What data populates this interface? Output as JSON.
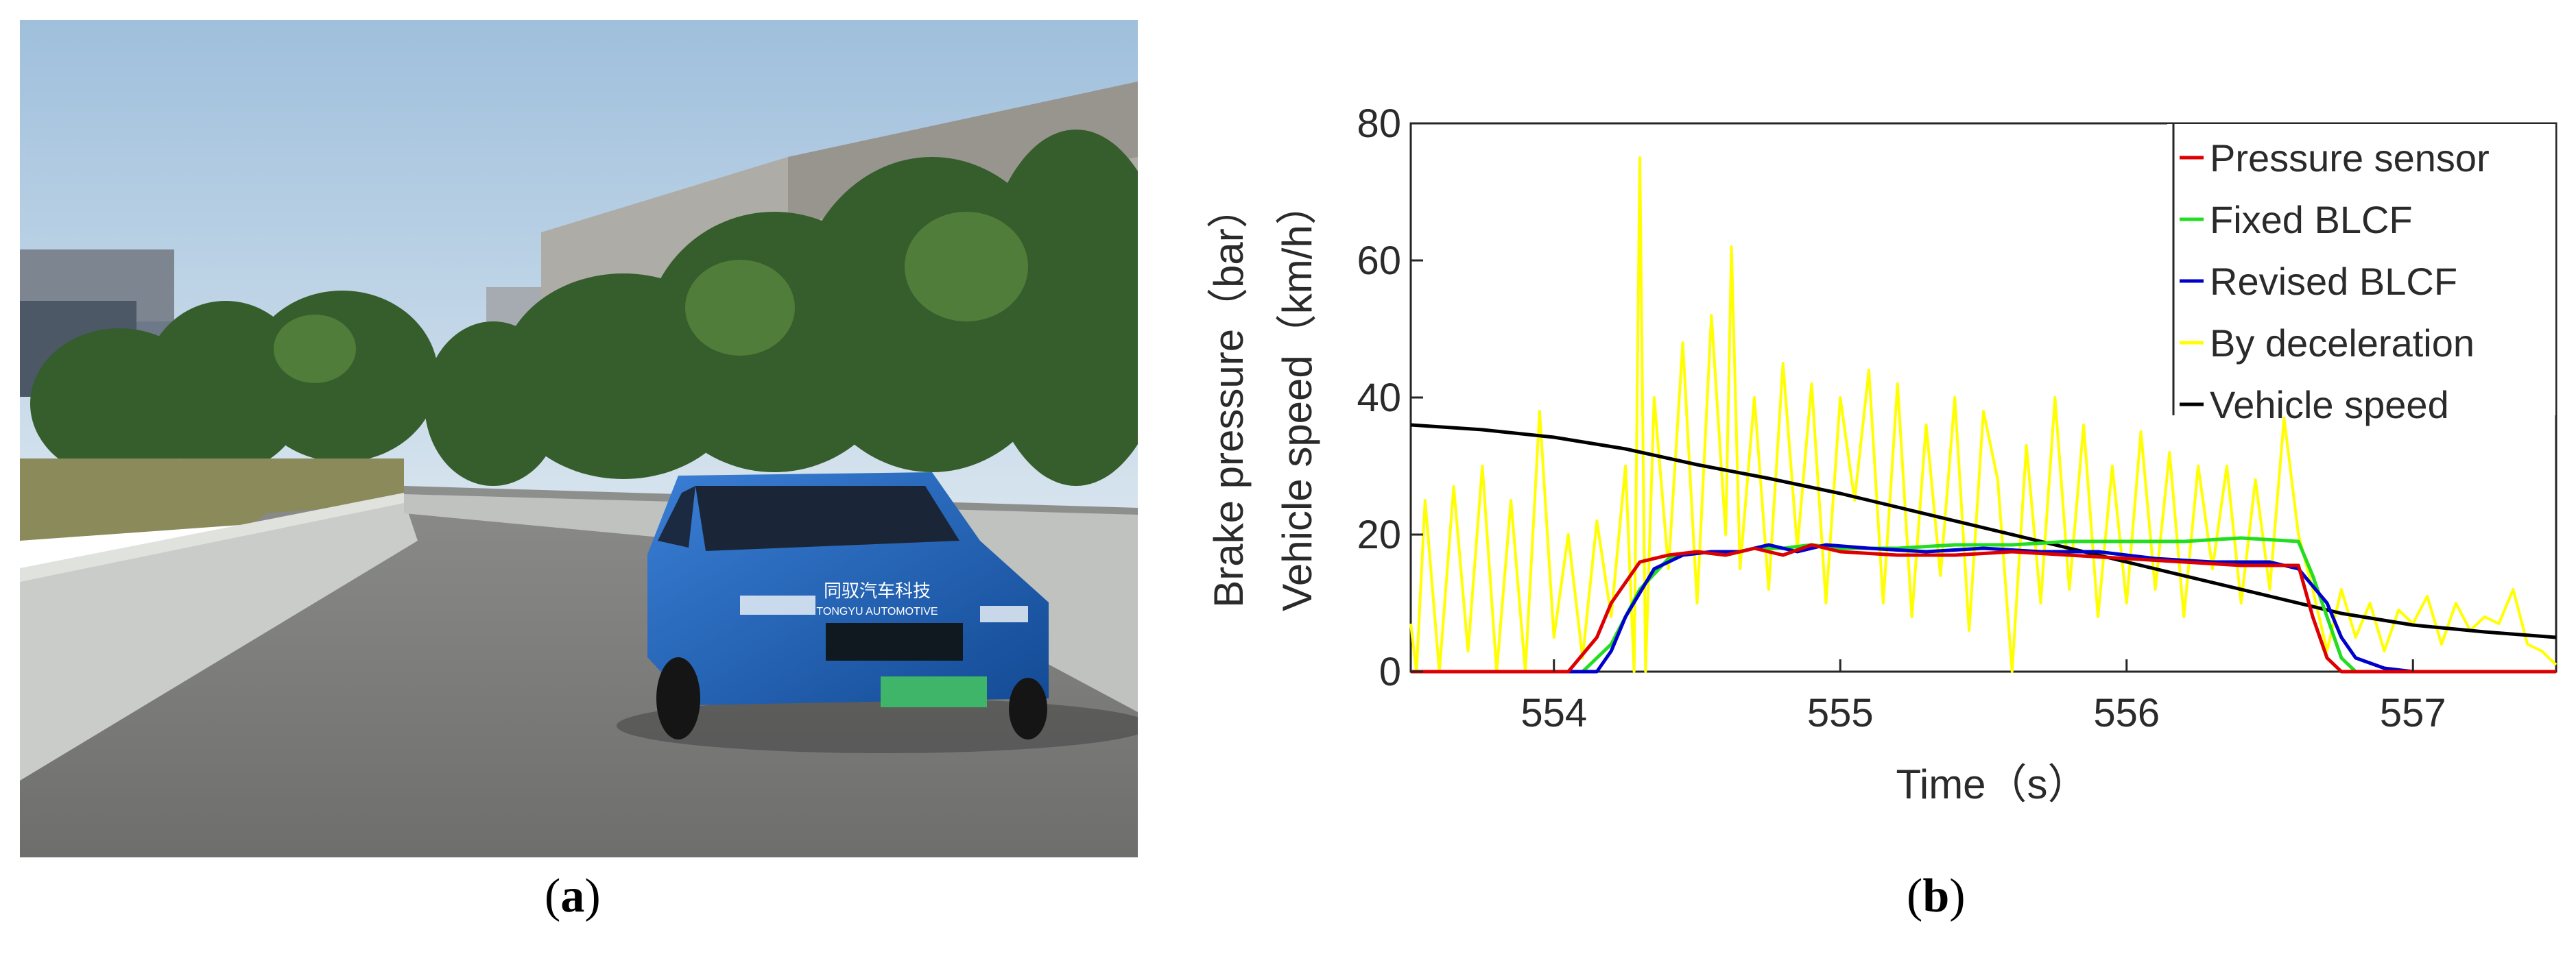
{
  "panels": {
    "a": {
      "label_open": "(",
      "label_letter": "a",
      "label_close": ")"
    },
    "b": {
      "label_open": "(",
      "label_letter": "b",
      "label_close": ")"
    }
  },
  "photo": {
    "car_sign_line1": "同驭汽车科技",
    "car_sign_line2": "TONGYU AUTOMOTIVE"
  },
  "colors": {
    "pressure_sensor": "#dd0000",
    "fixed_blcf": "#22dd22",
    "revised_blcf": "#0000cc",
    "by_deceleration": "#ffff00",
    "vehicle_speed": "#000000",
    "car_body": "#1f5fb0"
  },
  "chart_data": {
    "type": "line",
    "xlabel": "Time（s）",
    "ylabel_line1": "Brake pressure（bar）",
    "ylabel_line2": "Vehicle speed（km/h）",
    "xlim": [
      553.5,
      557.5
    ],
    "ylim": [
      0,
      80
    ],
    "xticks": [
      "554",
      "555",
      "556",
      "557"
    ],
    "yticks": [
      "0",
      "20",
      "40",
      "60",
      "80"
    ],
    "grid": false,
    "legend_position": "top-right",
    "legend": [
      "Pressure sensor",
      "Fixed BLCF",
      "Revised BLCF",
      "By deceleration",
      "Vehicle speed"
    ],
    "series": [
      {
        "name": "Pressure sensor",
        "x": [
          553.5,
          554.05,
          554.15,
          554.2,
          554.3,
          554.4,
          554.5,
          554.6,
          554.7,
          554.8,
          554.9,
          555.0,
          555.2,
          555.4,
          555.6,
          555.8,
          556.0,
          556.2,
          556.4,
          556.6,
          556.65,
          556.7,
          556.75,
          556.9,
          557.5
        ],
        "y": [
          0,
          0,
          5,
          10,
          16,
          17,
          17.5,
          17,
          18,
          17,
          18.5,
          17.5,
          17,
          17,
          17.5,
          17,
          16.5,
          16,
          15.5,
          15.5,
          8,
          2,
          0,
          0,
          0
        ]
      },
      {
        "name": "Fixed BLCF",
        "x": [
          553.5,
          554.1,
          554.2,
          554.3,
          554.4,
          554.5,
          554.6,
          554.7,
          554.8,
          554.9,
          555.0,
          555.2,
          555.4,
          555.6,
          555.8,
          556.0,
          556.2,
          556.4,
          556.6,
          556.65,
          556.7,
          556.75,
          556.8,
          557.5
        ],
        "y": [
          0,
          0,
          4,
          12,
          16.5,
          17.5,
          17,
          18,
          18,
          18.5,
          18,
          18,
          18.5,
          18.5,
          19,
          19,
          19,
          19.5,
          19,
          14,
          8,
          2,
          0,
          0
        ]
      },
      {
        "name": "Revised BLCF",
        "x": [
          553.5,
          554.15,
          554.2,
          554.25,
          554.35,
          554.45,
          554.55,
          554.65,
          554.75,
          554.85,
          554.95,
          555.1,
          555.3,
          555.5,
          555.7,
          555.9,
          556.1,
          556.3,
          556.5,
          556.6,
          556.7,
          556.75,
          556.8,
          556.9,
          557.0,
          557.5
        ],
        "y": [
          0,
          0,
          3,
          8,
          15,
          17,
          17.5,
          17.5,
          18.5,
          17.5,
          18.5,
          18,
          17.5,
          18,
          17.5,
          17.5,
          16.5,
          16,
          16,
          15,
          10,
          5,
          2,
          0.5,
          0,
          0
        ]
      },
      {
        "name": "By deceleration",
        "x": [
          553.5,
          553.52,
          553.55,
          553.6,
          553.65,
          553.7,
          553.75,
          553.8,
          553.85,
          553.9,
          553.95,
          554.0,
          554.05,
          554.1,
          554.15,
          554.2,
          554.25,
          554.28,
          554.3,
          554.32,
          554.35,
          554.4,
          554.45,
          554.5,
          554.55,
          554.6,
          554.62,
          554.65,
          554.7,
          554.75,
          554.8,
          554.85,
          554.9,
          554.95,
          555.0,
          555.05,
          555.1,
          555.15,
          555.2,
          555.25,
          555.3,
          555.35,
          555.4,
          555.45,
          555.5,
          555.55,
          555.6,
          555.65,
          555.7,
          555.75,
          555.8,
          555.85,
          555.9,
          555.95,
          556.0,
          556.05,
          556.1,
          556.15,
          556.2,
          556.25,
          556.3,
          556.35,
          556.4,
          556.45,
          556.5,
          556.55,
          556.6,
          556.65,
          556.7,
          556.75,
          556.8,
          556.85,
          556.9,
          556.95,
          557.0,
          557.05,
          557.1,
          557.15,
          557.2,
          557.25,
          557.3,
          557.35,
          557.4,
          557.45,
          557.5
        ],
        "y": [
          7,
          0,
          25,
          0,
          27,
          3,
          30,
          0,
          25,
          0,
          38,
          5,
          20,
          2,
          22,
          8,
          30,
          0,
          75,
          0,
          40,
          15,
          48,
          10,
          52,
          20,
          62,
          15,
          40,
          12,
          45,
          18,
          42,
          10,
          40,
          25,
          44,
          10,
          42,
          8,
          36,
          14,
          40,
          6,
          38,
          28,
          0,
          33,
          10,
          40,
          12,
          36,
          8,
          30,
          10,
          35,
          12,
          32,
          8,
          30,
          15,
          30,
          10,
          28,
          12,
          37,
          20,
          12,
          3,
          12,
          5,
          10,
          3,
          9,
          7,
          11,
          4,
          10,
          6,
          8,
          7,
          12,
          4,
          3,
          1
        ]
      },
      {
        "name": "Vehicle speed",
        "x": [
          553.5,
          553.75,
          554.0,
          554.25,
          554.5,
          554.75,
          555.0,
          555.25,
          555.5,
          555.75,
          556.0,
          556.25,
          556.5,
          556.75,
          557.0,
          557.25,
          557.5
        ],
        "y": [
          36,
          35.3,
          34.2,
          32.5,
          30.2,
          28.2,
          26,
          23.5,
          21,
          18.5,
          16,
          13.5,
          11,
          8.5,
          6.8,
          5.8,
          5
        ]
      }
    ]
  }
}
